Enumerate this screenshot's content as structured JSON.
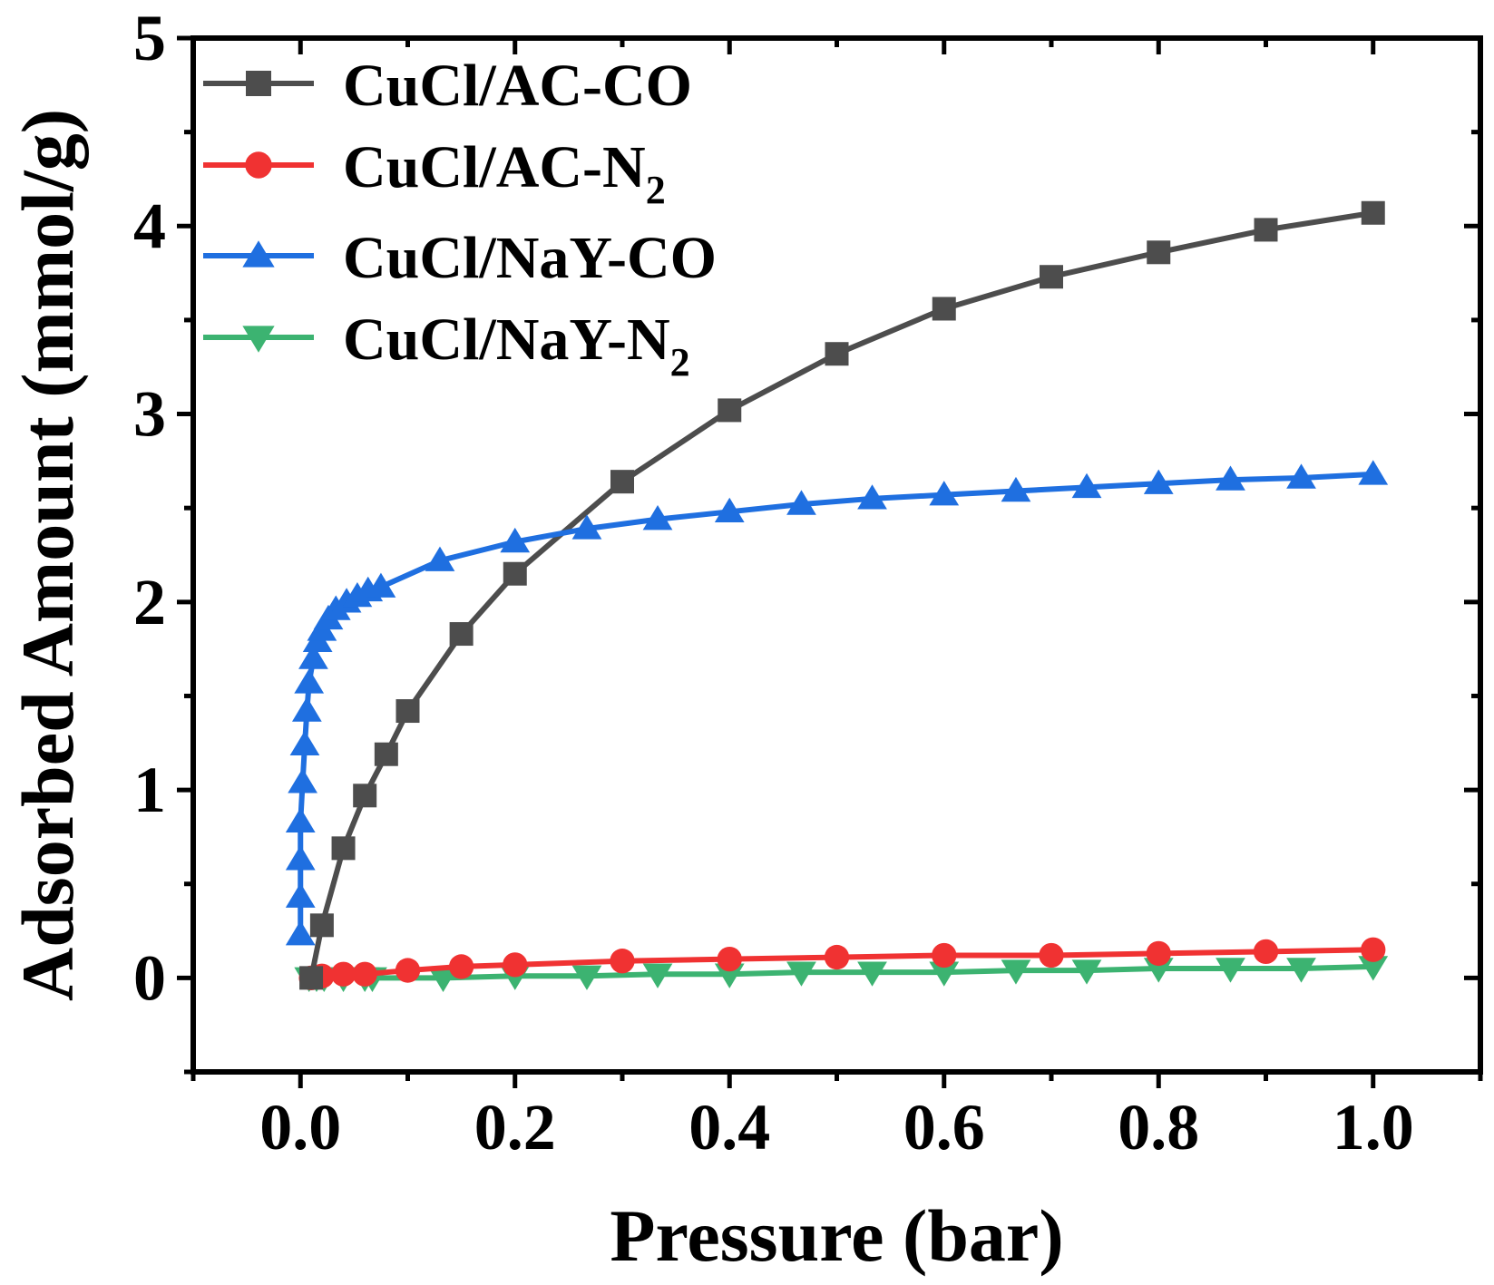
{
  "chart_data": {
    "type": "line",
    "title": "",
    "xlabel": "Pressure (bar)",
    "ylabel": "Adsorbed Amount (mmol/g)",
    "xlim": [
      -0.1,
      1.1
    ],
    "ylim": [
      -0.5,
      5
    ],
    "xticks": [
      0.0,
      0.2,
      0.4,
      0.6,
      0.8,
      1.0
    ],
    "xtick_labels": [
      "0.0",
      "0.2",
      "0.4",
      "0.6",
      "0.8",
      "1.0"
    ],
    "yticks": [
      0,
      1,
      2,
      3,
      4,
      5
    ],
    "ytick_labels": [
      "0",
      "1",
      "2",
      "3",
      "4",
      "5"
    ],
    "grid": false,
    "legend_position": "top-left",
    "series": [
      {
        "name": "CuCl/AC-CO",
        "label_main": "CuCl/AC-CO",
        "label_sub": "",
        "color": "#4d4d4d",
        "marker": "square",
        "x": [
          0.01,
          0.02,
          0.04,
          0.06,
          0.08,
          0.1,
          0.15,
          0.2,
          0.3,
          0.4,
          0.5,
          0.6,
          0.7,
          0.8,
          0.9,
          1.0
        ],
        "y": [
          0.0,
          0.28,
          0.69,
          0.97,
          1.19,
          1.42,
          1.83,
          2.15,
          2.64,
          3.02,
          3.32,
          3.56,
          3.73,
          3.86,
          3.98,
          4.07
        ]
      },
      {
        "name": "CuCl/AC-N2",
        "label_main": "CuCl/AC-N",
        "label_sub": "2",
        "color": "#f03232",
        "marker": "circle",
        "x": [
          0.01,
          0.02,
          0.04,
          0.06,
          0.1,
          0.15,
          0.2,
          0.3,
          0.4,
          0.5,
          0.6,
          0.7,
          0.8,
          0.9,
          1.0
        ],
        "y": [
          0.0,
          0.01,
          0.02,
          0.02,
          0.04,
          0.06,
          0.07,
          0.09,
          0.1,
          0.11,
          0.12,
          0.12,
          0.13,
          0.14,
          0.15
        ]
      },
      {
        "name": "CuCl/NaY-CO",
        "label_main": "CuCl/NaY-CO",
        "label_sub": "",
        "color": "#1f6fe0",
        "marker": "triangle-up",
        "x": [
          0.0,
          0.0,
          0.0,
          0.0,
          0.002,
          0.004,
          0.006,
          0.008,
          0.012,
          0.016,
          0.02,
          0.026,
          0.033,
          0.043,
          0.053,
          0.063,
          0.075,
          0.13,
          0.2,
          0.267,
          0.333,
          0.4,
          0.467,
          0.533,
          0.6,
          0.667,
          0.733,
          0.8,
          0.867,
          0.933,
          1.0
        ],
        "y": [
          0.23,
          0.43,
          0.63,
          0.83,
          1.04,
          1.24,
          1.42,
          1.57,
          1.7,
          1.79,
          1.85,
          1.91,
          1.96,
          2.0,
          2.03,
          2.06,
          2.08,
          2.22,
          2.32,
          2.39,
          2.44,
          2.48,
          2.52,
          2.55,
          2.57,
          2.59,
          2.61,
          2.63,
          2.65,
          2.66,
          2.68
        ]
      },
      {
        "name": "CuCl/NaY-N2",
        "label_main": "CuCl/NaY-N",
        "label_sub": "2",
        "color": "#3cb371",
        "marker": "triangle-down",
        "x": [
          0.008,
          0.015,
          0.022,
          0.04,
          0.06,
          0.067,
          0.133,
          0.2,
          0.267,
          0.333,
          0.4,
          0.467,
          0.533,
          0.6,
          0.667,
          0.733,
          0.8,
          0.867,
          0.933,
          1.0
        ],
        "y": [
          0.0,
          0.0,
          0.0,
          0.0,
          0.0,
          0.0,
          0.0,
          0.01,
          0.01,
          0.02,
          0.02,
          0.03,
          0.03,
          0.03,
          0.04,
          0.04,
          0.05,
          0.05,
          0.05,
          0.06
        ]
      }
    ]
  }
}
